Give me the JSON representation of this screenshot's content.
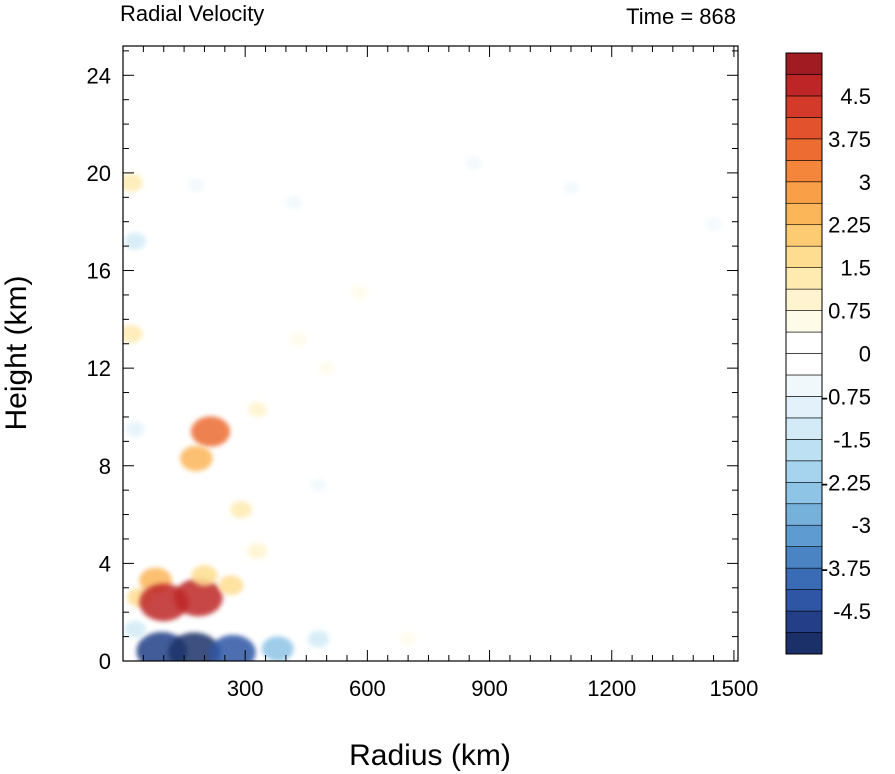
{
  "chart_data": {
    "type": "heatmap",
    "title": "Radial Velocity",
    "subtitle": "Time = 868",
    "xlabel": "Radius (km)",
    "ylabel": "Height (km)",
    "xlim": [
      0,
      1510
    ],
    "ylim": [
      0,
      25.2
    ],
    "x_ticks": [
      300,
      600,
      900,
      1200,
      1500
    ],
    "x_tick_labels": [
      "300",
      "600",
      "900",
      "1200",
      "1500"
    ],
    "y_ticks": [
      0,
      4,
      8,
      12,
      16,
      20,
      24
    ],
    "y_tick_labels": [
      "0",
      "4",
      "8",
      "12",
      "16",
      "20",
      "24"
    ],
    "grid": false,
    "colorbar": {
      "min": -5.25,
      "max": 5.25,
      "step": 0.375,
      "tick_values": [
        4.5,
        3.75,
        3,
        2.25,
        1.5,
        0.75,
        0,
        -0.75,
        -1.5,
        -2.25,
        -3,
        -3.75,
        -4.5
      ],
      "tick_labels": [
        "4.5",
        "3.75",
        "3",
        "2.25",
        "1.5",
        "0.75",
        "0",
        "-0.75",
        "-1.5",
        "-2.25",
        "-3",
        "-3.75",
        "-4.5"
      ],
      "colors": [
        "#1b3069",
        "#243f88",
        "#2f56a5",
        "#3a6cb5",
        "#4a84c3",
        "#5e9bd0",
        "#76b1dc",
        "#8ec4e6",
        "#a6d4ee",
        "#bde1f3",
        "#d2ebf7",
        "#e3f2fa",
        "#f1f8fc",
        "#ffffff",
        "#ffffff",
        "#fefbe9",
        "#fff4cf",
        "#ffeab0",
        "#fedd90",
        "#fdcb72",
        "#fbb65a",
        "#f89f48",
        "#f3863a",
        "#ec6c31",
        "#e2522c",
        "#d33a2a",
        "#be2526",
        "#a11c22"
      ]
    },
    "features": [
      {
        "r": 95,
        "z": 0.4,
        "v": -4.8
      },
      {
        "r": 175,
        "z": 0.35,
        "v": -5.0
      },
      {
        "r": 270,
        "z": 0.35,
        "v": -4.2
      },
      {
        "r": 380,
        "z": 0.5,
        "v": -2.5
      },
      {
        "r": 480,
        "z": 0.9,
        "v": -1.2
      },
      {
        "r": 30,
        "z": 1.3,
        "v": -1.2
      },
      {
        "r": 40,
        "z": 2.6,
        "v": 1.5
      },
      {
        "r": 80,
        "z": 3.3,
        "v": 2.6
      },
      {
        "r": 100,
        "z": 2.4,
        "v": 4.6
      },
      {
        "r": 185,
        "z": 2.6,
        "v": 4.6
      },
      {
        "r": 200,
        "z": 3.5,
        "v": 1.8
      },
      {
        "r": 265,
        "z": 3.1,
        "v": 1.6
      },
      {
        "r": 330,
        "z": 4.5,
        "v": 1.0
      },
      {
        "r": 290,
        "z": 6.2,
        "v": 1.2
      },
      {
        "r": 215,
        "z": 9.4,
        "v": 3.4
      },
      {
        "r": 180,
        "z": 8.3,
        "v": 2.6
      },
      {
        "r": 330,
        "z": 10.3,
        "v": 0.9
      },
      {
        "r": 430,
        "z": 13.2,
        "v": 0.7
      },
      {
        "r": 580,
        "z": 15.1,
        "v": 0.6
      },
      {
        "r": 500,
        "z": 12.0,
        "v": 0.5
      },
      {
        "r": 20,
        "z": 13.4,
        "v": 1.4
      },
      {
        "r": 20,
        "z": 19.6,
        "v": 1.4
      },
      {
        "r": 30,
        "z": 9.5,
        "v": -0.8
      },
      {
        "r": 30,
        "z": 17.2,
        "v": -1.2
      },
      {
        "r": 180,
        "z": 19.5,
        "v": -0.6
      },
      {
        "r": 420,
        "z": 18.8,
        "v": -0.6
      },
      {
        "r": 860,
        "z": 20.4,
        "v": -0.5
      },
      {
        "r": 1100,
        "z": 19.4,
        "v": -0.4
      },
      {
        "r": 1450,
        "z": 17.9,
        "v": -0.5
      },
      {
        "r": 480,
        "z": 7.2,
        "v": -0.5
      },
      {
        "r": 700,
        "z": 0.9,
        "v": 0.5
      }
    ]
  }
}
